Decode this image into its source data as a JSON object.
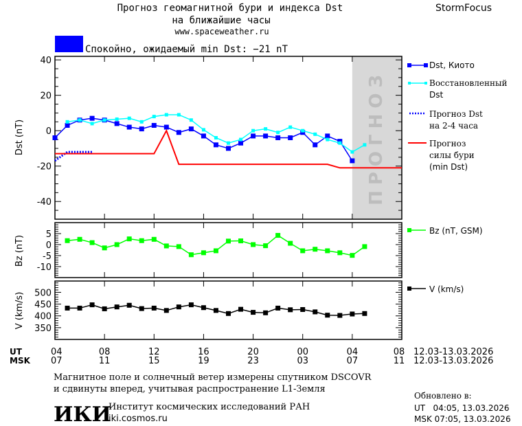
{
  "header": {
    "title_line1": "Прогноз геомагнитной бури и индекса Dst",
    "title_line2": "на ближайшие часы",
    "url": "www.spaceweather.ru",
    "brand": "StormFocus",
    "status_text": "Спокойно, ожидаемый min Dst: −21 nT",
    "status_color": "#0000ff"
  },
  "forecast_watermark": "ПРОГНОЗ",
  "legend": {
    "dst_kyoto": "Dst, Киото",
    "dst_restored_1": "Восстановленный",
    "dst_restored_2": "Dst",
    "dst_forecast_1": "Прогноз Dst",
    "dst_forecast_2": "на 2-4 часа",
    "storm_1": "Прогноз",
    "storm_2": "силы бури",
    "storm_3": "(min Dst)",
    "bz": "Bz (nT, GSM)",
    "v": "V (km/s)"
  },
  "axes": {
    "ut_label": "UT",
    "msk_label": "MSK",
    "ut_ticks": [
      "04",
      "08",
      "12",
      "16",
      "20",
      "00",
      "04",
      "08"
    ],
    "msk_ticks": [
      "07",
      "11",
      "15",
      "19",
      "23",
      "03",
      "07",
      "11"
    ],
    "ut_range": "12.03-13.03.2026",
    "msk_range": "12.03-13.03.2026"
  },
  "footer": {
    "note_1": "Магнитное поле и солнечный ветер измерены спутником DSCOVR",
    "note_2": "и сдвинуты вперед, учитывая распространение L1-Земля",
    "updated_label": "Обновлено в:",
    "updated_ut": "UT   04:05, 13.03.2026",
    "updated_msk": "MSK 07:05, 13.03.2026",
    "institute": "Институт космических исследований РАН",
    "institute_url": "iki.cosmos.ru",
    "logo_text": "ИКИ"
  },
  "chart_data": [
    {
      "type": "line",
      "ylabel": "Dst (nT)",
      "ylim": [
        -50,
        42
      ],
      "yticks": [
        40,
        20,
        0,
        -20,
        -40
      ],
      "xlim_hours_ut": [
        "12.03 04:00",
        "13.03 08:00"
      ],
      "forecast_region_start": "13.03 04:00",
      "series": [
        {
          "name": "Dst, Киото",
          "color": "#0000ff",
          "x": [
            "04",
            "05",
            "06",
            "07",
            "08",
            "09",
            "10",
            "11",
            "12",
            "13",
            "14",
            "15",
            "16",
            "17",
            "18",
            "19",
            "20",
            "21",
            "22",
            "23",
            "00",
            "01",
            "02",
            "03",
            "04"
          ],
          "values": [
            -4,
            3,
            6,
            7,
            6,
            4,
            2,
            1,
            3,
            2,
            -1,
            1,
            -3,
            -8,
            -10,
            -7,
            -3,
            -3,
            -4,
            -4,
            -1,
            -8,
            -3,
            -6,
            -17
          ]
        },
        {
          "name": "Восстановленный Dst",
          "color": "#00ffff",
          "x": [
            "05",
            "06",
            "07",
            "08",
            "09",
            "10",
            "11",
            "12",
            "13",
            "14",
            "15",
            "16",
            "17",
            "18",
            "19",
            "20",
            "21",
            "22",
            "23",
            "00",
            "01",
            "02",
            "03",
            "04",
            "05"
          ],
          "values": [
            5,
            6,
            4,
            6,
            6.5,
            7,
            5,
            8,
            9,
            9,
            6,
            0.5,
            -4,
            -7,
            -5,
            0,
            1,
            -1,
            2,
            0,
            -2,
            -5,
            -7,
            -12,
            -8
          ]
        },
        {
          "name": "Прогноз Dst на 2-4 часа",
          "color": "#0000ff",
          "style": "dotted",
          "x": [
            "04",
            "05",
            "07"
          ],
          "values": [
            -17,
            -12,
            -12
          ]
        },
        {
          "name": "Прогноз силы бури (min Dst)",
          "color": "#ff0000",
          "x": [
            "04",
            "12",
            "13",
            "14",
            "02",
            "03",
            "08"
          ],
          "values": [
            -13,
            -13,
            0,
            -19,
            -19,
            -21,
            -21
          ]
        }
      ]
    },
    {
      "type": "line",
      "ylabel": "Bz (nT)",
      "ylim": [
        -15,
        10
      ],
      "yticks": [
        5,
        0,
        -5,
        -10
      ],
      "series": [
        {
          "name": "Bz (nT, GSM)",
          "color": "#00ff00",
          "x": [
            "05",
            "06",
            "07",
            "08",
            "09",
            "10",
            "11",
            "12",
            "13",
            "14",
            "15",
            "16",
            "17",
            "18",
            "19",
            "20",
            "21",
            "22",
            "23",
            "00",
            "01",
            "02",
            "03",
            "04",
            "05"
          ],
          "values": [
            1.8,
            2.4,
            0.9,
            -1.5,
            0,
            2.6,
            1.8,
            2.4,
            -0.6,
            -0.9,
            -4.6,
            -3.7,
            -2.8,
            1.6,
            1.7,
            0,
            -0.5,
            4.2,
            0.6,
            -2.8,
            -2.1,
            -2.8,
            -3.7,
            -4.9,
            -0.9
          ]
        }
      ]
    },
    {
      "type": "line",
      "ylabel": "V (km/s)",
      "ylim": [
        300,
        548
      ],
      "yticks": [
        500,
        450,
        400,
        350
      ],
      "series": [
        {
          "name": "V (km/s)",
          "color": "#000000",
          "x": [
            "05",
            "06",
            "07",
            "08",
            "09",
            "10",
            "11",
            "12",
            "13",
            "14",
            "15",
            "16",
            "17",
            "18",
            "19",
            "20",
            "21",
            "22",
            "23",
            "00",
            "01",
            "02",
            "03",
            "04",
            "05"
          ],
          "values": [
            433,
            433,
            447,
            430,
            438,
            445,
            431,
            433,
            423,
            438,
            447,
            435,
            423,
            410,
            428,
            415,
            413,
            433,
            426,
            427,
            417,
            403,
            402,
            408,
            410
          ]
        }
      ]
    }
  ]
}
